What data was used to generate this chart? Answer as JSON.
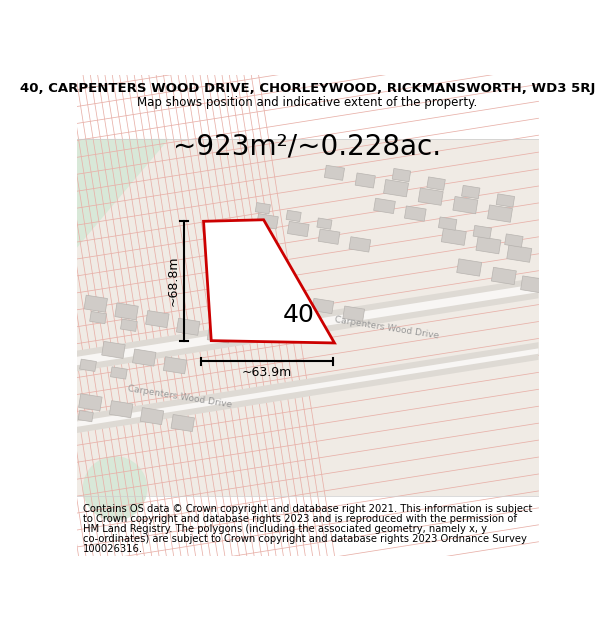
{
  "title_line1": "40, CARPENTERS WOOD DRIVE, CHORLEYWOOD, RICKMANSWORTH, WD3 5RJ",
  "title_line2": "Map shows position and indicative extent of the property.",
  "area_text": "~923m²/~0.228ac.",
  "number_label": "40",
  "dim_vertical": "~68.8m",
  "dim_horizontal": "~63.9m",
  "footer_lines": [
    "Contains OS data © Crown copyright and database right 2021. This information is subject",
    "to Crown copyright and database rights 2023 and is reproduced with the permission of",
    "HM Land Registry. The polygons (including the associated geometry, namely x, y",
    "co-ordinates) are subject to Crown copyright and database rights 2023 Ordnance Survey",
    "100026316."
  ],
  "bg_map_color": "#f0ebe5",
  "bg_top_color": "#d8e8d8",
  "plot_outline_color": "#cc0000",
  "plot_fill_color": "#ffffff",
  "building_color": "#d0ccc8",
  "building_edge": "#b8b4b0",
  "road_band_color": "#dedad4",
  "road_white_color": "#f8f6f4",
  "grid_line_color": "#e8b0a8",
  "dim_line_color": "#000000",
  "road_label_color": "#999999",
  "title_fontsize": 9.5,
  "subtitle_fontsize": 8.5,
  "area_fontsize": 20,
  "footer_fontsize": 7.2,
  "road_label_fontsize": 6.5,
  "dim_fontsize": 9,
  "number_fontsize": 18
}
